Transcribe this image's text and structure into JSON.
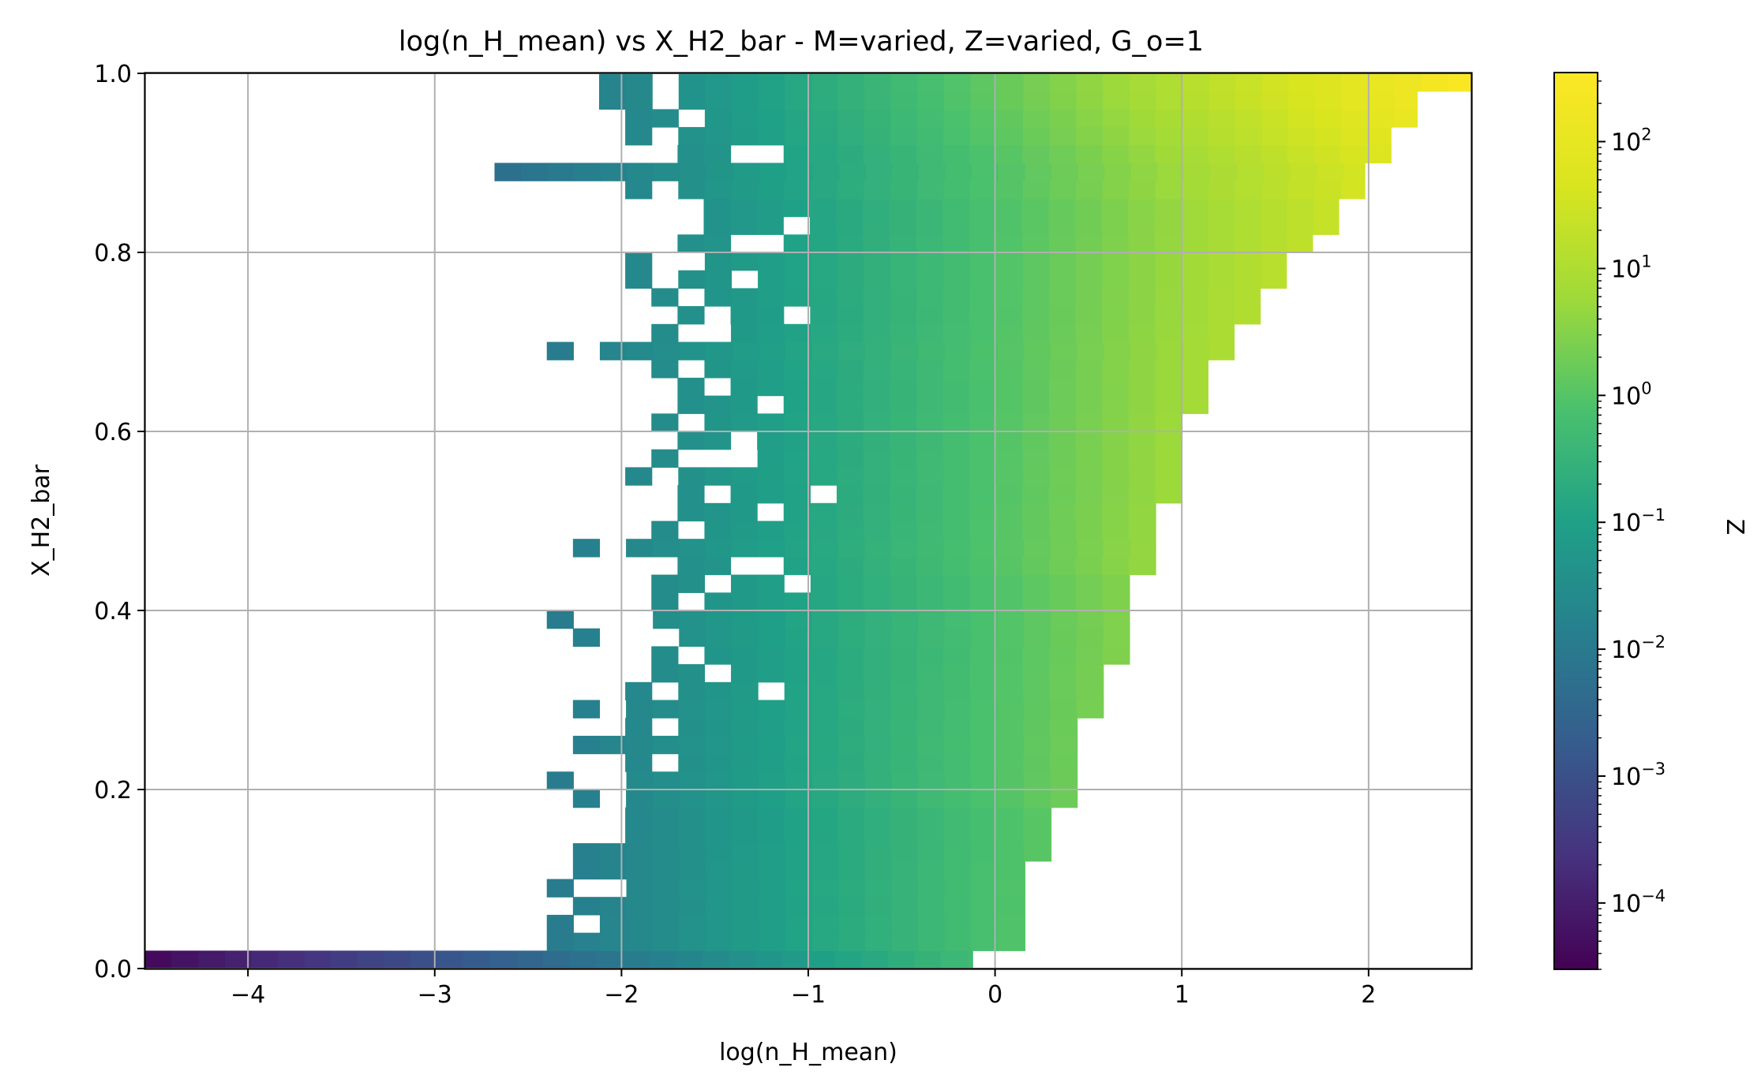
{
  "chart_data": {
    "type": "heatmap",
    "title": "log(n_H_mean) vs X_H2_bar - M=varied, Z=varied, G_o=1",
    "xlabel": "log(n_H_mean)",
    "ylabel": "X_H2_bar",
    "xlim": [
      -4.55,
      2.55
    ],
    "ylim": [
      0.0,
      1.0
    ],
    "xticks": [
      -4,
      -3,
      -2,
      -1,
      0,
      1,
      2
    ],
    "xtick_labels": [
      "−4",
      "−3",
      "−2",
      "−1",
      "0",
      "1",
      "2"
    ],
    "yticks": [
      0.0,
      0.2,
      0.4,
      0.6,
      0.8,
      1.0
    ],
    "ytick_labels": [
      "0.0",
      "0.2",
      "0.4",
      "0.6",
      "0.8",
      "1.0"
    ],
    "grid": true,
    "colorbar": {
      "label": "Z",
      "scale": "log",
      "colormap": "viridis",
      "range": [
        3e-05,
        350
      ],
      "ticks": [
        {
          "base": "10",
          "exp": "−4",
          "value": 0.0001
        },
        {
          "base": "10",
          "exp": "−3",
          "value": 0.001
        },
        {
          "base": "10",
          "exp": "−2",
          "value": 0.01
        },
        {
          "base": "10",
          "exp": "−1",
          "value": 0.1
        },
        {
          "base": "10",
          "exp": "0",
          "value": 1
        },
        {
          "base": "10",
          "exp": "1",
          "value": 10
        },
        {
          "base": "10",
          "exp": "2",
          "value": 100
        }
      ]
    },
    "grid_bins": {
      "x_min": -4.55,
      "x_width": 0.142,
      "nx": 50,
      "y_min": 0.0,
      "y_width": 0.02,
      "ny": 50
    },
    "y_row_note": "rows listed bottom (X_H2_bar 0.00-0.02) to top (0.98-1.00); each row: [x_start, x_end, log10 Z at x_start, log10 Z at x_end, holes as [x_from, x_to]]",
    "rows": [
      [
        -4.55,
        -0.12,
        -4.4,
        -0.3,
        []
      ],
      [
        -2.4,
        0.16,
        -2.0,
        0.0,
        []
      ],
      [
        -2.4,
        0.16,
        -2.0,
        0.0,
        [
          [
            -2.26,
            -2.12
          ]
        ]
      ],
      [
        -2.26,
        0.16,
        -1.9,
        0.0,
        []
      ],
      [
        -2.4,
        0.16,
        -2.0,
        0.0,
        [
          [
            -2.26,
            -1.98
          ]
        ]
      ],
      [
        -2.26,
        0.16,
        -1.9,
        0.0,
        []
      ],
      [
        -2.26,
        0.3,
        -1.9,
        0.1,
        [
          [
            -1.98,
            -1.98
          ]
        ]
      ],
      [
        -1.98,
        0.3,
        -1.7,
        0.1,
        []
      ],
      [
        -1.98,
        0.3,
        -1.7,
        0.1,
        []
      ],
      [
        -2.26,
        0.44,
        -1.9,
        0.3,
        [
          [
            -2.12,
            -1.98
          ]
        ]
      ],
      [
        -2.4,
        0.44,
        -2.0,
        0.3,
        [
          [
            -2.26,
            -1.98
          ]
        ]
      ],
      [
        -1.98,
        0.44,
        -1.7,
        0.3,
        [
          [
            -1.84,
            -1.7
          ]
        ]
      ],
      [
        -2.26,
        0.44,
        -1.9,
        0.3,
        [
          [
            -2.12,
            -2.12
          ]
        ]
      ],
      [
        -1.98,
        0.44,
        -1.7,
        0.3,
        [
          [
            -1.84,
            -1.7
          ]
        ]
      ],
      [
        -2.26,
        0.58,
        -1.9,
        0.4,
        [
          [
            -2.12,
            -1.98
          ]
        ]
      ],
      [
        -1.98,
        0.58,
        -1.7,
        0.4,
        [
          [
            -1.84,
            -1.7
          ],
          [
            -1.28,
            -1.14
          ]
        ]
      ],
      [
        -1.84,
        0.58,
        -1.6,
        0.4,
        [
          [
            -1.56,
            -1.42
          ]
        ]
      ],
      [
        -1.84,
        0.72,
        -1.6,
        0.5,
        [
          [
            -1.7,
            -1.56
          ]
        ]
      ],
      [
        -2.26,
        0.72,
        -1.9,
        0.5,
        [
          [
            -2.12,
            -1.7
          ]
        ]
      ],
      [
        -2.4,
        0.72,
        -2.0,
        0.5,
        [
          [
            -2.26,
            -1.84
          ]
        ]
      ],
      [
        -1.84,
        0.72,
        -1.6,
        0.5,
        [
          [
            -1.7,
            -1.56
          ]
        ]
      ],
      [
        -1.84,
        0.72,
        -1.6,
        0.5,
        [
          [
            -1.56,
            -1.42
          ],
          [
            -1.14,
            -1.0
          ]
        ]
      ],
      [
        -1.7,
        0.86,
        -1.5,
        0.7,
        [
          [
            -1.42,
            -1.14
          ]
        ]
      ],
      [
        -2.26,
        0.86,
        -1.9,
        0.7,
        [
          [
            -2.12,
            -1.98
          ]
        ]
      ],
      [
        -1.84,
        0.86,
        -1.6,
        0.7,
        [
          [
            -1.7,
            -1.56
          ]
        ]
      ],
      [
        -1.7,
        0.86,
        -1.5,
        0.7,
        [
          [
            -1.28,
            -1.14
          ]
        ]
      ],
      [
        -1.7,
        1.0,
        -1.5,
        0.8,
        [
          [
            -1.56,
            -1.42
          ],
          [
            -1.0,
            -0.86
          ]
        ]
      ],
      [
        -1.98,
        1.0,
        -1.7,
        0.8,
        [
          [
            -1.84,
            -1.7
          ]
        ]
      ],
      [
        -1.84,
        1.0,
        -1.6,
        0.8,
        [
          [
            -1.7,
            -1.28
          ]
        ]
      ],
      [
        -1.7,
        1.0,
        -1.5,
        0.8,
        [
          [
            -1.42,
            -1.28
          ]
        ]
      ],
      [
        -1.84,
        1.0,
        -1.6,
        0.8,
        [
          [
            -1.7,
            -1.56
          ]
        ]
      ],
      [
        -1.7,
        1.14,
        -1.5,
        0.9,
        [
          [
            -1.28,
            -1.14
          ]
        ]
      ],
      [
        -1.7,
        1.14,
        -1.5,
        0.9,
        [
          [
            -1.56,
            -1.42
          ]
        ]
      ],
      [
        -1.84,
        1.14,
        -1.6,
        0.9,
        [
          [
            -1.7,
            -1.56
          ]
        ]
      ],
      [
        -2.4,
        1.28,
        -2.0,
        1.0,
        [
          [
            -2.26,
            -2.12
          ]
        ]
      ],
      [
        -1.84,
        1.28,
        -1.6,
        1.0,
        [
          [
            -1.7,
            -1.42
          ]
        ]
      ],
      [
        -1.7,
        1.42,
        -1.5,
        1.1,
        [
          [
            -1.56,
            -1.42
          ],
          [
            -1.14,
            -1.0
          ]
        ]
      ],
      [
        -1.84,
        1.42,
        -1.6,
        1.1,
        [
          [
            -1.7,
            -1.56
          ]
        ]
      ],
      [
        -1.98,
        1.56,
        -1.7,
        1.2,
        [
          [
            -1.84,
            -1.7
          ],
          [
            -1.42,
            -1.28
          ]
        ]
      ],
      [
        -1.98,
        1.56,
        -1.7,
        1.2,
        [
          [
            -1.84,
            -1.56
          ]
        ]
      ],
      [
        -1.7,
        1.7,
        -1.5,
        1.3,
        [
          [
            -1.42,
            -1.14
          ]
        ]
      ],
      [
        -1.56,
        1.84,
        -1.4,
        1.4,
        [
          [
            -1.14,
            -1.0
          ]
        ]
      ],
      [
        -1.56,
        1.84,
        -1.4,
        1.4,
        []
      ],
      [
        -1.98,
        1.98,
        -1.7,
        1.6,
        [
          [
            -1.84,
            -1.7
          ]
        ]
      ],
      [
        -2.68,
        1.98,
        -2.3,
        1.6,
        []
      ],
      [
        -1.7,
        2.12,
        -1.5,
        1.8,
        [
          [
            -1.42,
            -1.14
          ]
        ]
      ],
      [
        -1.98,
        2.12,
        -1.7,
        1.9,
        [
          [
            -1.84,
            -1.7
          ]
        ]
      ],
      [
        -1.98,
        2.26,
        -1.7,
        2.1,
        [
          [
            -1.7,
            -1.56
          ]
        ]
      ],
      [
        -2.12,
        2.26,
        -1.8,
        2.2,
        [
          [
            -1.84,
            -1.7
          ]
        ]
      ],
      [
        -2.12,
        2.55,
        -1.8,
        2.5,
        [
          [
            -1.84,
            -1.7
          ]
        ]
      ]
    ]
  }
}
